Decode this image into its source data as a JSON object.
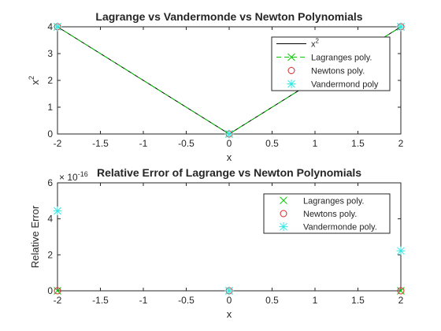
{
  "chart_data": [
    {
      "type": "line",
      "title": "Lagrange vs Vandermonde vs Newton Polynomials",
      "xlabel": "x",
      "ylabel": "x",
      "ylabel_superscript": "2",
      "xlim": [
        -2,
        2
      ],
      "ylim": [
        0,
        4
      ],
      "xticks": [
        "-2",
        "-1.5",
        "-1",
        "-0.5",
        "0",
        "0.5",
        "1",
        "1.5",
        "2"
      ],
      "yticks": [
        "0",
        "1",
        "2",
        "3",
        "4"
      ],
      "grid": false,
      "legend_position": "top-right",
      "series": [
        {
          "name": "x",
          "name_superscript": "2",
          "style": "line",
          "color": "#000000",
          "x": [
            -2,
            0,
            2
          ],
          "y": [
            4,
            0,
            4
          ]
        },
        {
          "name": "Lagranges poly.",
          "style": "dashed-x",
          "color": "#00cc00",
          "x": [
            -2,
            0,
            2
          ],
          "y": [
            4,
            0,
            4
          ]
        },
        {
          "name": "Newtons poly.",
          "style": "circle",
          "color": "#d62728",
          "x": [
            -2,
            0,
            2
          ],
          "y": [
            4,
            0,
            4
          ]
        },
        {
          "name": "Vandermond poly",
          "style": "star",
          "color": "#33e6e6",
          "x": [
            -2,
            0,
            2
          ],
          "y": [
            4,
            0,
            4
          ]
        }
      ]
    },
    {
      "type": "scatter",
      "title": "Relative Error of Lagrange vs Newton Polynomials",
      "xlabel": "x",
      "ylabel": "Relative Error",
      "exponent_base": "× 10",
      "exponent_power": "-16",
      "xlim": [
        -2,
        2
      ],
      "ylim": [
        0,
        6
      ],
      "xticks": [
        "-2",
        "-1.5",
        "-1",
        "-0.5",
        "0",
        "0.5",
        "1",
        "1.5",
        "2"
      ],
      "yticks": [
        "0",
        "2",
        "4",
        "6"
      ],
      "grid": false,
      "legend_position": "top-right",
      "series": [
        {
          "name": "Lagranges poly.",
          "style": "x",
          "color": "#00cc00",
          "x": [
            -2,
            0,
            2
          ],
          "y": [
            0,
            0,
            0
          ]
        },
        {
          "name": "Newtons poly.",
          "style": "circle",
          "color": "#d62728",
          "x": [
            -2,
            0,
            2
          ],
          "y": [
            0,
            0,
            0
          ]
        },
        {
          "name": "Vandermonde poly.",
          "style": "star",
          "color": "#33e6e6",
          "x": [
            -2,
            0,
            2
          ],
          "y": [
            4.44,
            0,
            2.22
          ]
        }
      ]
    }
  ]
}
